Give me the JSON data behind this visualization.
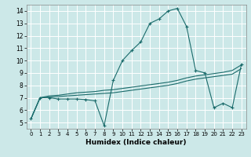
{
  "xlabel": "Humidex (Indice chaleur)",
  "bg_color": "#cce8e8",
  "grid_color": "#ffffff",
  "line_color": "#1a6b6b",
  "xlim": [
    -0.5,
    23.5
  ],
  "ylim": [
    4.5,
    14.5
  ],
  "xticks": [
    0,
    1,
    2,
    3,
    4,
    5,
    6,
    7,
    8,
    9,
    10,
    11,
    12,
    13,
    14,
    15,
    16,
    17,
    18,
    19,
    20,
    21,
    22,
    23
  ],
  "yticks": [
    5,
    6,
    7,
    8,
    9,
    10,
    11,
    12,
    13,
    14
  ],
  "line1_x": [
    0,
    1,
    2,
    3,
    4,
    5,
    6,
    7,
    8,
    9,
    10,
    11,
    12,
    13,
    14,
    15,
    16,
    17,
    18,
    19,
    20,
    21,
    22,
    23
  ],
  "line1_y": [
    5.3,
    7.0,
    7.0,
    6.9,
    6.9,
    6.9,
    6.85,
    6.75,
    4.75,
    8.4,
    10.0,
    10.8,
    11.5,
    13.0,
    13.35,
    14.0,
    14.2,
    12.75,
    9.2,
    9.0,
    6.2,
    6.55,
    6.2,
    9.7
  ],
  "line2_x": [
    0,
    1,
    2,
    3,
    4,
    5,
    6,
    7,
    8,
    9,
    10,
    11,
    12,
    13,
    14,
    15,
    16,
    17,
    18,
    19,
    20,
    21,
    22,
    23
  ],
  "line2_y": [
    5.3,
    7.0,
    7.15,
    7.2,
    7.3,
    7.4,
    7.45,
    7.5,
    7.6,
    7.65,
    7.75,
    7.85,
    7.95,
    8.05,
    8.15,
    8.25,
    8.4,
    8.6,
    8.75,
    8.85,
    8.95,
    9.05,
    9.2,
    9.65
  ],
  "line3_x": [
    0,
    1,
    2,
    3,
    4,
    5,
    6,
    7,
    8,
    9,
    10,
    11,
    12,
    13,
    14,
    15,
    16,
    17,
    18,
    19,
    20,
    21,
    22,
    23
  ],
  "line3_y": [
    5.3,
    7.0,
    7.05,
    7.1,
    7.15,
    7.2,
    7.25,
    7.3,
    7.35,
    7.4,
    7.5,
    7.6,
    7.7,
    7.8,
    7.9,
    8.0,
    8.15,
    8.35,
    8.5,
    8.6,
    8.7,
    8.8,
    8.9,
    9.35
  ]
}
